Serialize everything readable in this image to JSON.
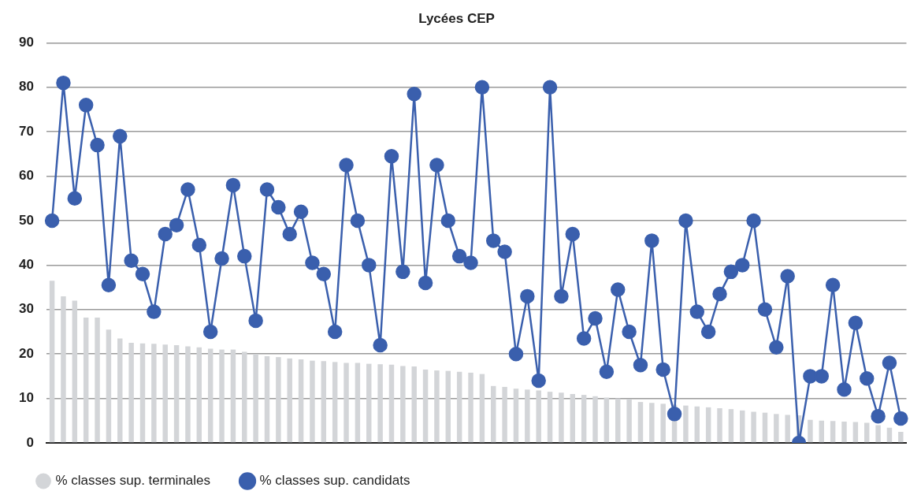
{
  "chart_data": {
    "type": "bar",
    "title": "Lycées CEP",
    "categories": [
      null,
      null,
      null,
      null,
      null,
      null,
      null,
      null,
      null,
      null,
      null,
      null,
      null,
      null,
      null,
      null,
      null,
      null,
      null,
      null,
      null,
      null,
      null,
      null,
      null,
      null,
      null,
      null,
      null,
      null,
      null,
      null,
      null,
      null,
      null,
      null,
      null,
      null,
      null,
      null,
      null,
      null,
      null,
      null,
      null,
      null,
      null,
      null,
      null,
      null,
      null,
      null,
      null,
      null,
      null,
      null,
      null,
      null,
      null,
      null,
      null,
      null,
      null,
      null,
      null,
      null,
      null,
      null,
      null,
      null,
      null,
      null,
      null,
      null,
      null,
      null
    ],
    "series": [
      {
        "name": "% classes sup. terminales",
        "color": "#d3d5d8",
        "values": [
          36.5,
          33,
          32,
          28.2,
          28.2,
          25.5,
          23.5,
          22.5,
          22.4,
          22.3,
          22.1,
          22,
          21.7,
          21.5,
          21.2,
          21,
          21,
          20.5,
          20,
          19.5,
          19.3,
          19,
          18.8,
          18.5,
          18.4,
          18.2,
          18,
          18,
          17.8,
          17.7,
          17.6,
          17.3,
          17.2,
          16.5,
          16.3,
          16.2,
          16,
          15.8,
          15.5,
          12.8,
          12.6,
          12.2,
          12,
          11.8,
          11.5,
          11.3,
          11,
          10.8,
          10.5,
          10.2,
          10,
          9.8,
          9.2,
          9,
          8.8,
          8.6,
          8.4,
          8.2,
          8,
          7.8,
          7.6,
          7.3,
          7,
          6.8,
          6.5,
          6.3,
          6.2,
          5.2,
          5,
          4.9,
          4.8,
          4.7,
          4.5,
          4,
          3.4,
          2.5
        ]
      },
      {
        "type": "line",
        "name": "% classes sup. candidats",
        "color": "#3a5fad",
        "values": [
          50,
          81,
          55,
          76,
          67,
          35.5,
          69,
          41,
          38,
          29.5,
          47,
          49,
          57,
          44.5,
          25,
          41.5,
          58,
          42,
          27.5,
          57,
          53,
          47,
          52,
          40.5,
          38,
          25,
          62.5,
          50,
          40,
          22,
          64.5,
          38.5,
          78.5,
          36,
          62.5,
          50,
          42,
          40.5,
          80,
          45.5,
          43,
          20,
          33,
          14,
          80,
          33,
          47,
          23.5,
          28,
          16,
          34.5,
          25,
          17.5,
          45.5,
          16.5,
          6.5,
          50,
          29.5,
          25,
          33.5,
          38.5,
          40,
          50,
          30,
          21.5,
          37.5,
          0,
          15,
          15,
          35.5,
          12,
          27,
          14.5,
          6,
          18,
          5.5
        ]
      }
    ],
    "ylim": [
      0,
      90
    ],
    "yticks": [
      0,
      10,
      20,
      30,
      40,
      50,
      60,
      70,
      80,
      90
    ],
    "grid": "y",
    "legend": "bottom left",
    "marker": "circle",
    "line_style": "solid"
  }
}
